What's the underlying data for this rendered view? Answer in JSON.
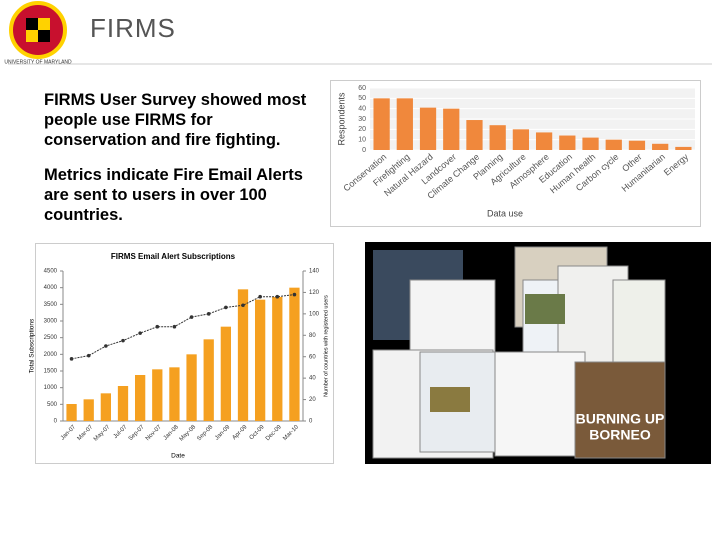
{
  "header": {
    "logo_text": "UNIVERSITY OF MARYLAND",
    "title": "FIRMS"
  },
  "bullets": [
    "FIRMS User Survey showed most people use FIRMS for conservation and fire fighting.",
    "Metrics indicate Fire Email Alerts are sent to users in over 100 countries."
  ],
  "collage": {
    "texts": [
      "BURNING UP",
      "BORNEO"
    ]
  },
  "chart_data": [
    {
      "type": "bar",
      "y_label": "Respondents",
      "x_label": "Data use",
      "categories": [
        "Conservation",
        "Firefighting",
        "Natural Hazard",
        "Landcover",
        "Climate Change",
        "Planning",
        "Agriculture",
        "Atmosphere",
        "Education",
        "Human health",
        "Carbon cycle",
        "Other",
        "Humanitarian",
        "Energy"
      ],
      "values": [
        50,
        50,
        41,
        40,
        29,
        24,
        20,
        17,
        14,
        12,
        10,
        9,
        6,
        3
      ],
      "color": "#f0883c",
      "ylim": [
        0,
        60
      ],
      "yticks": [
        0,
        10,
        20,
        30,
        40,
        50,
        60
      ],
      "grid": true
    },
    {
      "type": "combo",
      "title": "FIRMS Email Alert Subscriptions",
      "y_label": "Total Subscriptions",
      "y2_label": "Number of countries with registered users",
      "x_label": "Date",
      "categories": [
        "Jan-07",
        "Mar-07",
        "May-07",
        "Jul-07",
        "Sep-07",
        "Nov-07",
        "Jan-08",
        "May-08",
        "Sep-08",
        "Jan-09",
        "Apr-09",
        "Oct-09",
        "Dec-09",
        "Mar-10"
      ],
      "series": [
        {
          "type": "bar",
          "color": "#f5a020",
          "values": [
            510,
            650,
            830,
            1050,
            1380,
            1550,
            1610,
            2000,
            2450,
            2830,
            3950,
            3640,
            3720,
            4000
          ]
        },
        {
          "type": "line",
          "axis": "y2",
          "color": "#333333",
          "values": [
            58,
            61,
            70,
            75,
            82,
            88,
            88,
            97,
            100,
            106,
            108,
            116,
            116,
            118
          ]
        }
      ],
      "ylim": [
        0,
        4500
      ],
      "yticks": [
        0,
        500,
        1000,
        1500,
        2000,
        2500,
        3000,
        3500,
        4000,
        4500
      ],
      "y2lim": [
        0,
        140
      ],
      "y2ticks": [
        0,
        20,
        40,
        60,
        80,
        100,
        120,
        140
      ],
      "grid": false
    }
  ]
}
